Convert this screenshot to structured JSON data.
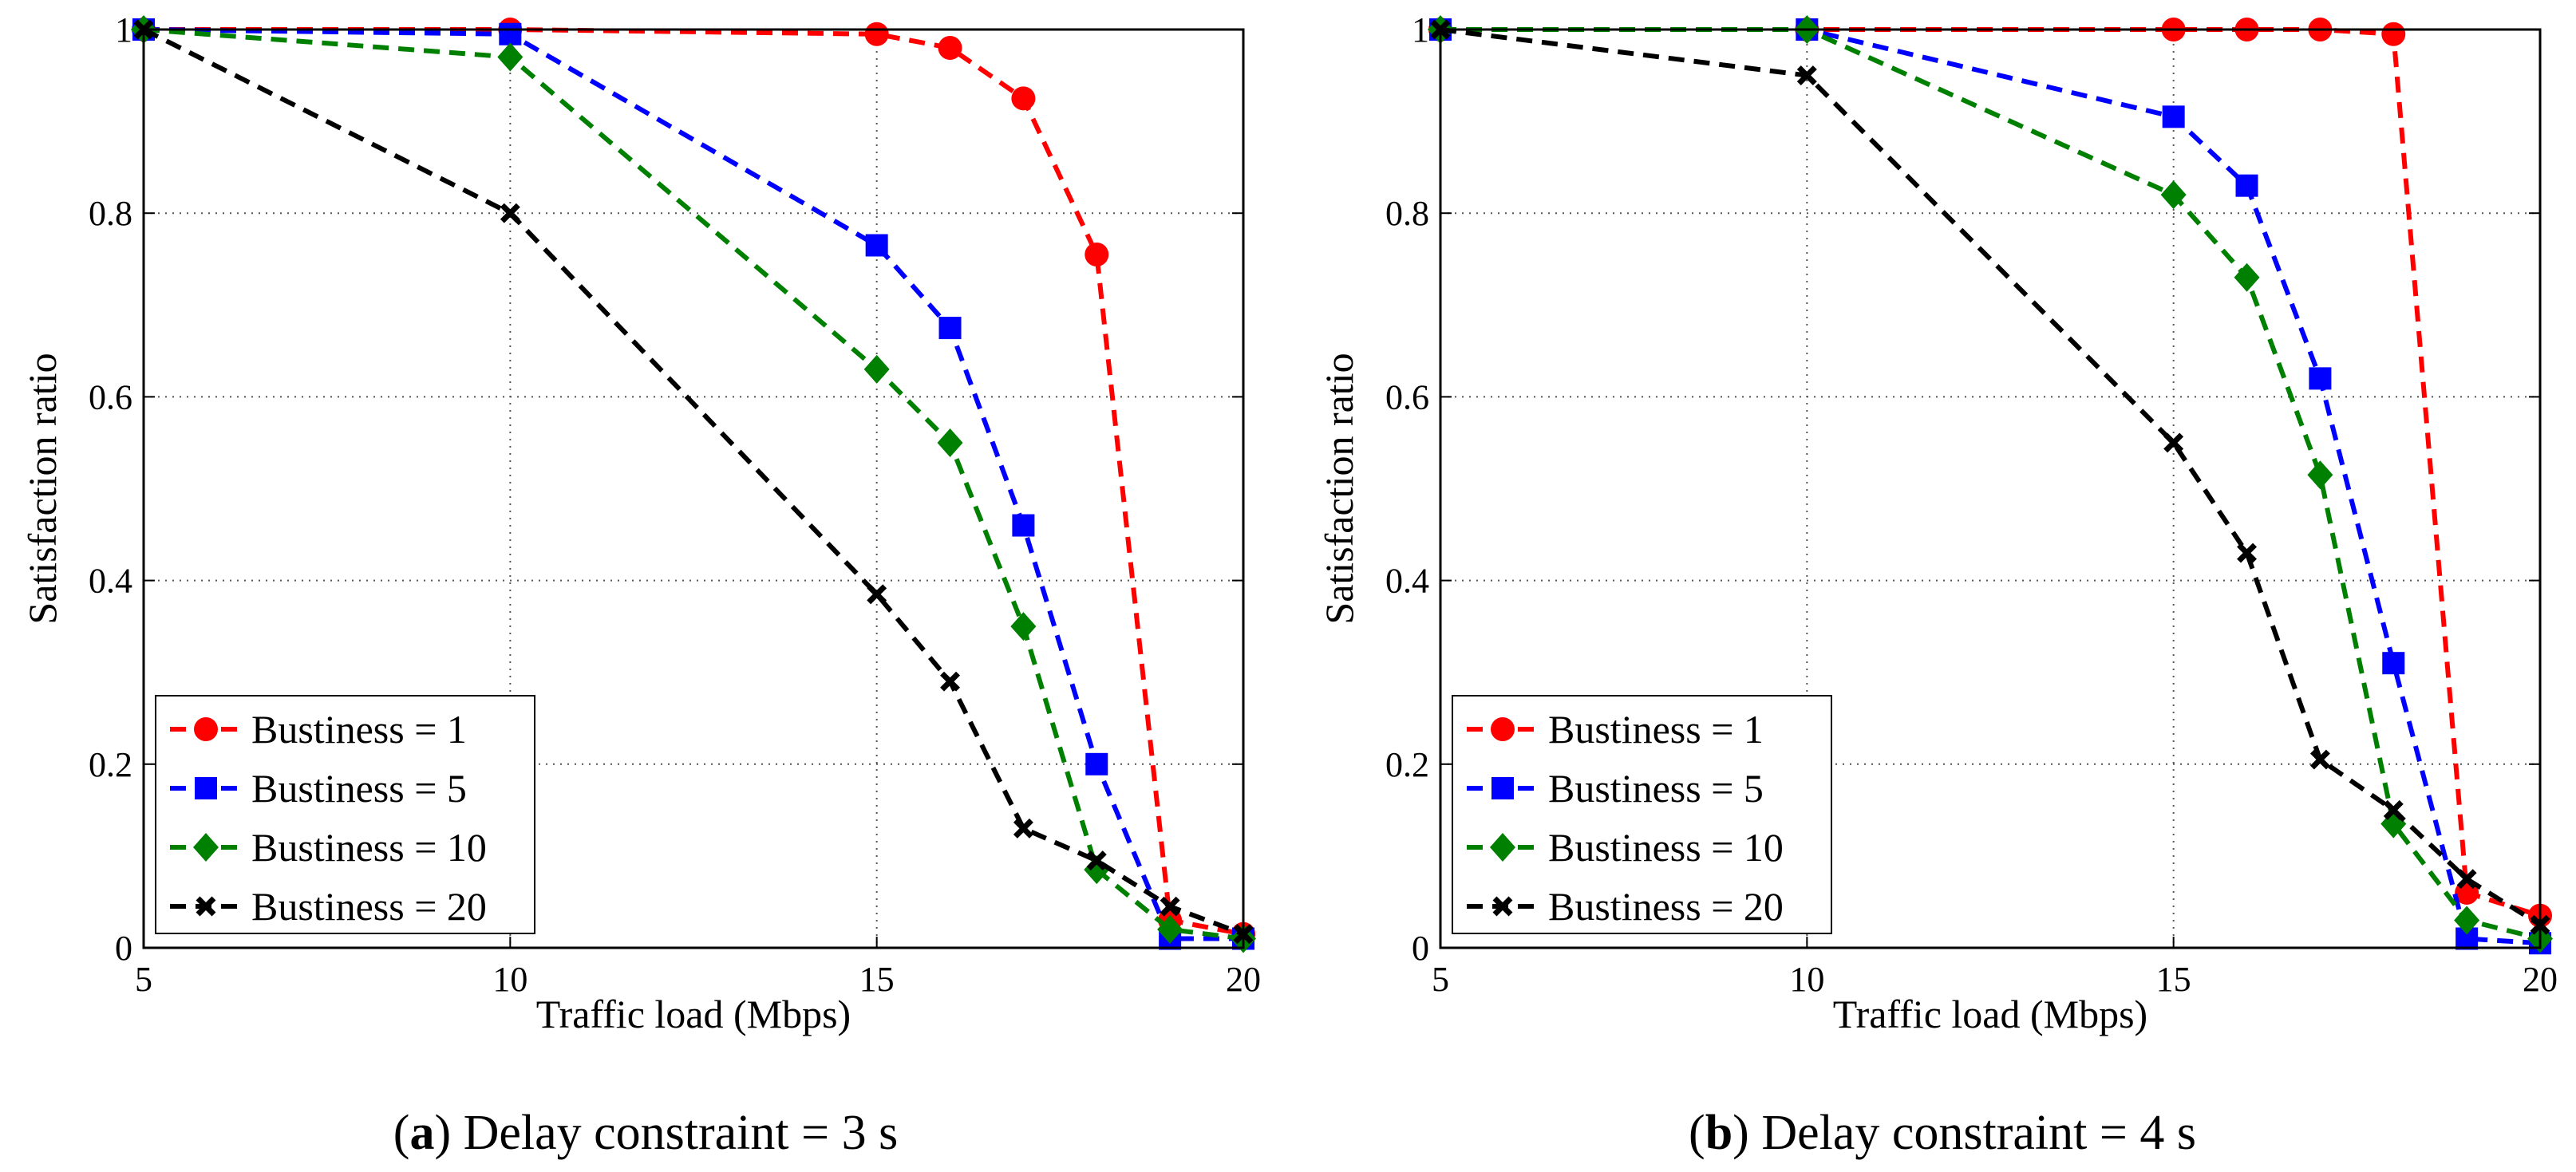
{
  "chart_data": [
    {
      "type": "line",
      "panel_letter": "a",
      "caption": "Delay constraint = 3 s",
      "xlabel": "Traffic load (Mbps)",
      "ylabel": "Satisfaction ratio",
      "xlim": [
        5,
        20
      ],
      "ylim": [
        0,
        1
      ],
      "xticks": [
        5,
        10,
        15,
        20
      ],
      "yticks": [
        0,
        0.2,
        0.4,
        0.6,
        0.8,
        1
      ],
      "ytick_labels": [
        "0",
        "0.2",
        "0.4",
        "0.6",
        "0.8",
        "1"
      ],
      "grid": true,
      "legend_position": "bottom-left",
      "x": [
        5,
        10,
        15,
        16,
        17,
        18,
        19,
        20
      ],
      "series": [
        {
          "name": "Bustiness = 1",
          "color": "#ff0000",
          "marker": "circle",
          "values": [
            1.0,
            1.0,
            0.995,
            0.98,
            0.925,
            0.755,
            0.03,
            0.015
          ]
        },
        {
          "name": "Bustiness = 5",
          "color": "#0000ff",
          "marker": "square",
          "values": [
            1.0,
            0.995,
            0.765,
            0.675,
            0.46,
            0.2,
            0.01,
            0.01
          ]
        },
        {
          "name": "Bustiness = 10",
          "color": "#008000",
          "marker": "diamond",
          "values": [
            1.0,
            0.97,
            0.63,
            0.55,
            0.35,
            0.085,
            0.02,
            0.01
          ]
        },
        {
          "name": "Bustiness = 20",
          "color": "#000000",
          "marker": "x",
          "values": [
            1.0,
            0.8,
            0.385,
            0.29,
            0.13,
            0.095,
            0.045,
            0.015
          ]
        }
      ]
    },
    {
      "type": "line",
      "panel_letter": "b",
      "caption": "Delay constraint = 4 s",
      "xlabel": "Traffic load (Mbps)",
      "ylabel": "Satisfaction ratio",
      "xlim": [
        5,
        20
      ],
      "ylim": [
        0,
        1
      ],
      "xticks": [
        5,
        10,
        15,
        20
      ],
      "yticks": [
        0,
        0.2,
        0.4,
        0.6,
        0.8,
        1
      ],
      "ytick_labels": [
        "0",
        "0.2",
        "0.4",
        "0.6",
        "0.8",
        "1"
      ],
      "grid": true,
      "legend_position": "bottom-left",
      "x": [
        5,
        10,
        15,
        16,
        17,
        18,
        19,
        20
      ],
      "series": [
        {
          "name": "Bustiness = 1",
          "color": "#ff0000",
          "marker": "circle",
          "values": [
            1.0,
            1.0,
            1.0,
            1.0,
            1.0,
            0.995,
            0.06,
            0.035
          ]
        },
        {
          "name": "Bustiness = 5",
          "color": "#0000ff",
          "marker": "square",
          "values": [
            1.0,
            1.0,
            0.905,
            0.83,
            0.62,
            0.31,
            0.01,
            0.005
          ]
        },
        {
          "name": "Bustiness = 10",
          "color": "#008000",
          "marker": "diamond",
          "values": [
            1.0,
            1.0,
            0.82,
            0.73,
            0.515,
            0.135,
            0.03,
            0.01
          ]
        },
        {
          "name": "Bustiness = 20",
          "color": "#000000",
          "marker": "x",
          "values": [
            1.0,
            0.95,
            0.55,
            0.43,
            0.205,
            0.15,
            0.075,
            0.025
          ]
        }
      ]
    }
  ]
}
